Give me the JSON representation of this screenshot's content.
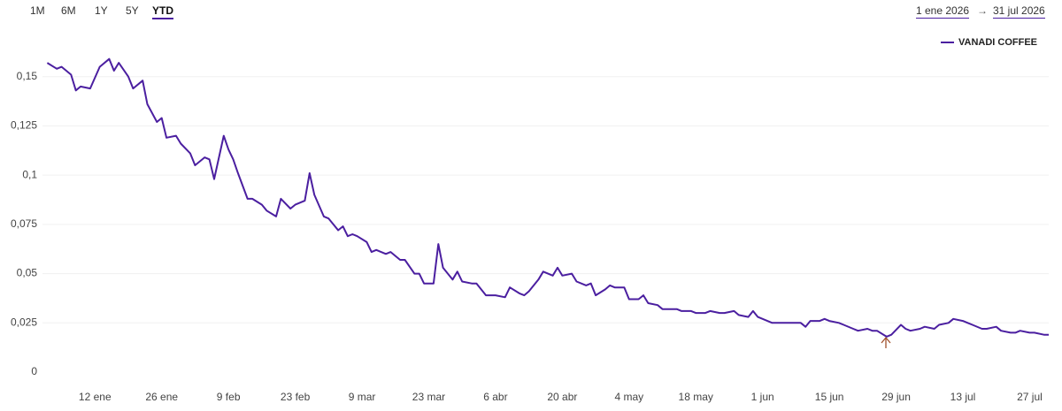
{
  "controls": {
    "ranges": [
      "1M",
      "6M",
      "1Y",
      "5Y",
      "YTD"
    ],
    "active": 4,
    "date_from": "1 ene 2026",
    "date_separator": "→",
    "date_to": "31 jul 2026"
  },
  "chart_data": {
    "type": "line",
    "legend": "top-right",
    "grid": true,
    "x": [
      "2026-01-02",
      "2026-01-04",
      "2026-01-05",
      "2026-01-06",
      "2026-01-07",
      "2026-01-08",
      "2026-01-09",
      "2026-01-11",
      "2026-01-13",
      "2026-01-15",
      "2026-01-16",
      "2026-01-17",
      "2026-01-19",
      "2026-01-20",
      "2026-01-22",
      "2026-01-23",
      "2026-01-25",
      "2026-01-26",
      "2026-01-27",
      "2026-01-29",
      "2026-01-30",
      "2026-02-01",
      "2026-02-02",
      "2026-02-04",
      "2026-02-05",
      "2026-02-06",
      "2026-02-08",
      "2026-02-09",
      "2026-02-10",
      "2026-02-11",
      "2026-02-13",
      "2026-02-14",
      "2026-02-16",
      "2026-02-17",
      "2026-02-19",
      "2026-02-20",
      "2026-02-22",
      "2026-02-23",
      "2026-02-25",
      "2026-02-26",
      "2026-02-27",
      "2026-03-01",
      "2026-03-02",
      "2026-03-04",
      "2026-03-05",
      "2026-03-06",
      "2026-03-07",
      "2026-03-08",
      "2026-03-10",
      "2026-03-11",
      "2026-03-12",
      "2026-03-14",
      "2026-03-15",
      "2026-03-17",
      "2026-03-18",
      "2026-03-20",
      "2026-03-21",
      "2026-03-22",
      "2026-03-24",
      "2026-03-25",
      "2026-03-26",
      "2026-03-28",
      "2026-03-29",
      "2026-03-30",
      "2026-04-01",
      "2026-04-02",
      "2026-04-04",
      "2026-04-05",
      "2026-04-06",
      "2026-04-08",
      "2026-04-09",
      "2026-04-11",
      "2026-04-12",
      "2026-04-13",
      "2026-04-15",
      "2026-04-16",
      "2026-04-18",
      "2026-04-19",
      "2026-04-20",
      "2026-04-22",
      "2026-04-23",
      "2026-04-25",
      "2026-04-26",
      "2026-04-27",
      "2026-04-29",
      "2026-04-30",
      "2026-05-01",
      "2026-05-03",
      "2026-05-04",
      "2026-05-06",
      "2026-05-07",
      "2026-05-08",
      "2026-05-10",
      "2026-05-11",
      "2026-05-13",
      "2026-05-14",
      "2026-05-15",
      "2026-05-17",
      "2026-05-18",
      "2026-05-20",
      "2026-05-21",
      "2026-05-23",
      "2026-05-24",
      "2026-05-26",
      "2026-05-27",
      "2026-05-29",
      "2026-05-30",
      "2026-05-31",
      "2026-06-02",
      "2026-06-03",
      "2026-06-04",
      "2026-06-06",
      "2026-06-07",
      "2026-06-09",
      "2026-06-10",
      "2026-06-11",
      "2026-06-13",
      "2026-06-14",
      "2026-06-15",
      "2026-06-17",
      "2026-06-18",
      "2026-06-20",
      "2026-06-21",
      "2026-06-23",
      "2026-06-24",
      "2026-06-25",
      "2026-06-27",
      "2026-06-28",
      "2026-06-30",
      "2026-07-01",
      "2026-07-02",
      "2026-07-04",
      "2026-07-05",
      "2026-07-07",
      "2026-07-08",
      "2026-07-10",
      "2026-07-11",
      "2026-07-13",
      "2026-07-14",
      "2026-07-15",
      "2026-07-17",
      "2026-07-18",
      "2026-07-20",
      "2026-07-21",
      "2026-07-23",
      "2026-07-24",
      "2026-07-25",
      "2026-07-27",
      "2026-07-28",
      "2026-07-30",
      "2026-07-31"
    ],
    "series": [
      {
        "name": "VANADI COFFEE",
        "color": "#4b1fa0",
        "values": [
          0.157,
          0.154,
          0.155,
          0.153,
          0.151,
          0.143,
          0.145,
          0.144,
          0.155,
          0.159,
          0.153,
          0.157,
          0.15,
          0.144,
          0.148,
          0.136,
          0.127,
          0.129,
          0.119,
          0.12,
          0.116,
          0.111,
          0.105,
          0.109,
          0.108,
          0.098,
          0.12,
          0.113,
          0.108,
          0.101,
          0.088,
          0.088,
          0.085,
          0.082,
          0.079,
          0.088,
          0.083,
          0.085,
          0.087,
          0.101,
          0.09,
          0.079,
          0.078,
          0.072,
          0.074,
          0.069,
          0.07,
          0.069,
          0.066,
          0.061,
          0.062,
          0.06,
          0.061,
          0.057,
          0.057,
          0.05,
          0.05,
          0.045,
          0.045,
          0.065,
          0.053,
          0.047,
          0.051,
          0.046,
          0.045,
          0.045,
          0.039,
          0.039,
          0.039,
          0.038,
          0.043,
          0.04,
          0.039,
          0.041,
          0.047,
          0.051,
          0.049,
          0.053,
          0.049,
          0.05,
          0.046,
          0.044,
          0.045,
          0.039,
          0.042,
          0.044,
          0.043,
          0.043,
          0.037,
          0.037,
          0.039,
          0.035,
          0.034,
          0.032,
          0.032,
          0.032,
          0.031,
          0.031,
          0.03,
          0.03,
          0.031,
          0.03,
          0.03,
          0.031,
          0.029,
          0.028,
          0.031,
          0.028,
          0.026,
          0.025,
          0.025,
          0.025,
          0.025,
          0.025,
          0.023,
          0.026,
          0.026,
          0.027,
          0.026,
          0.025,
          0.024,
          0.022,
          0.021,
          0.022,
          0.021,
          0.021,
          0.018,
          0.019,
          0.024,
          0.022,
          0.021,
          0.022,
          0.023,
          0.022,
          0.024,
          0.025,
          0.027,
          0.026,
          0.025,
          0.024,
          0.022,
          0.022,
          0.023,
          0.021,
          0.02,
          0.02,
          0.021,
          0.02,
          0.02,
          0.019,
          0.019
        ]
      }
    ],
    "xlim": [
      "2026-01-01",
      "2026-07-31"
    ],
    "xticks": [
      {
        "value": "2026-01-12",
        "label": "12 ene"
      },
      {
        "value": "2026-01-26",
        "label": "26 ene"
      },
      {
        "value": "2026-02-09",
        "label": "9 feb"
      },
      {
        "value": "2026-02-23",
        "label": "23 feb"
      },
      {
        "value": "2026-03-09",
        "label": "9 mar"
      },
      {
        "value": "2026-03-23",
        "label": "23 mar"
      },
      {
        "value": "2026-04-06",
        "label": "6 abr"
      },
      {
        "value": "2026-04-20",
        "label": "20 abr"
      },
      {
        "value": "2026-05-04",
        "label": "4 may"
      },
      {
        "value": "2026-05-18",
        "label": "18 may"
      },
      {
        "value": "2026-06-01",
        "label": "1 jun"
      },
      {
        "value": "2026-06-15",
        "label": "15 jun"
      },
      {
        "value": "2026-06-29",
        "label": "29 jun"
      },
      {
        "value": "2026-07-13",
        "label": "13 jul"
      },
      {
        "value": "2026-07-27",
        "label": "27 jul"
      }
    ],
    "ylim": [
      0,
      0.175
    ],
    "yticks": [
      0,
      {
        "value": 0.025,
        "label": "0,025"
      },
      {
        "value": 0.05,
        "label": "0,05"
      },
      {
        "value": 0.075,
        "label": "0,075"
      },
      {
        "value": 0.1,
        "label": "0,1"
      },
      {
        "value": 0.125,
        "label": "0,125"
      },
      {
        "value": 0.15,
        "label": "0,15"
      }
    ]
  }
}
